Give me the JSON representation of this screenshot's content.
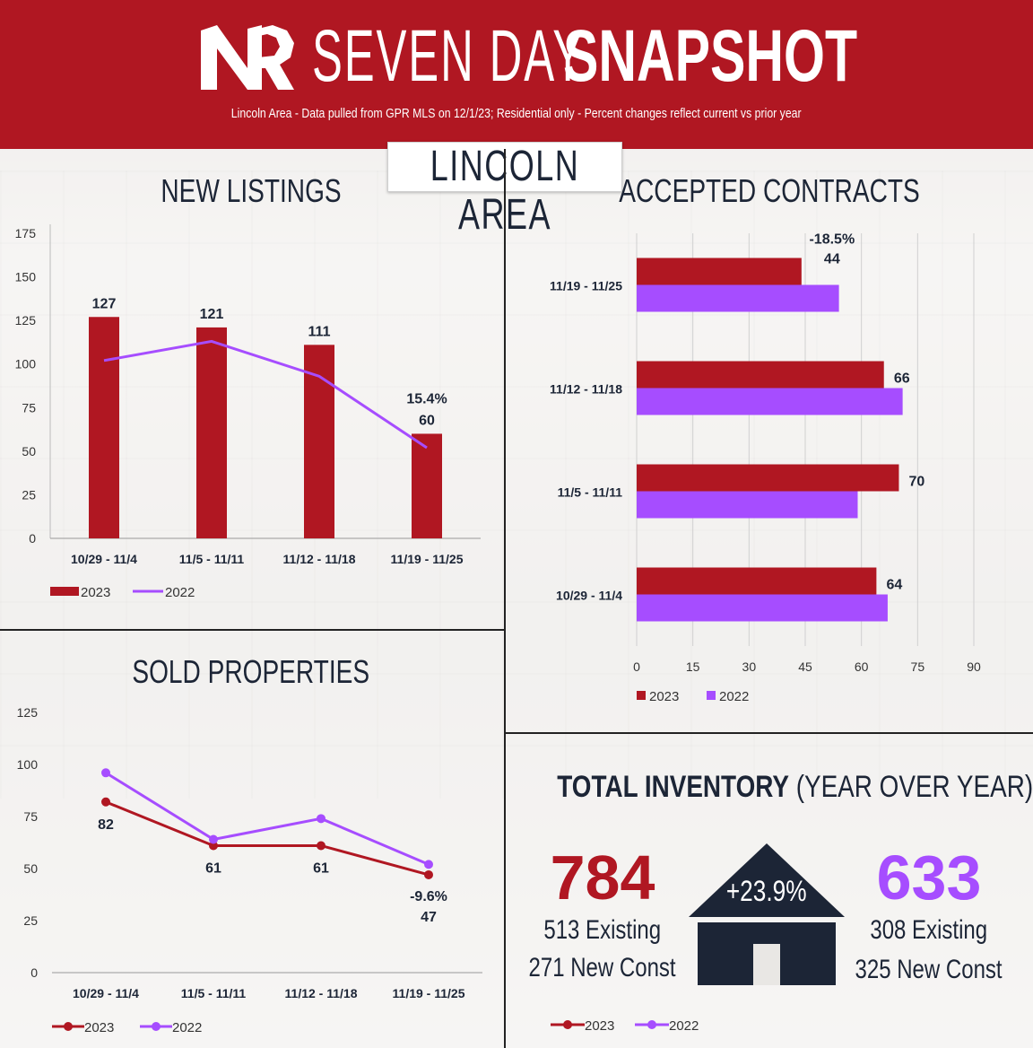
{
  "colors": {
    "red": "#b01722",
    "purple": "#a64dff",
    "navy": "#1c2536"
  },
  "header": {
    "logo_text": "NR",
    "title_thin": "SEVEN DAY",
    "title_bold": "SNAPSHOT",
    "subtitle": "Lincoln Area - Data pulled from GPR MLS on 12/1/23; Residential only - Percent changes reflect current vs prior year",
    "area": "LINCOLN AREA"
  },
  "chart_data": [
    {
      "id": "new_listings",
      "type": "bar",
      "title": "NEW  LISTINGS",
      "categories": [
        "10/29 - 11/4",
        "11/5 - 11/11",
        "11/12 - 11/18",
        "11/19 - 11/25"
      ],
      "series": [
        {
          "name": "2023",
          "type": "bar",
          "values": [
            127,
            121,
            111,
            60
          ]
        },
        {
          "name": "2022",
          "type": "line",
          "values": [
            102,
            113,
            93,
            52
          ]
        }
      ],
      "data_labels": [
        "127",
        "121",
        "111",
        "60"
      ],
      "annotation": "15.4%",
      "yticks": [
        0,
        25,
        50,
        75,
        100,
        125,
        150,
        175
      ],
      "ylim": [
        0,
        175
      ],
      "grid": true,
      "legend": "bottom-left"
    },
    {
      "id": "accepted_contracts",
      "type": "bar",
      "orientation": "horizontal",
      "title": "ACCEPTED CONTRACTS",
      "categories": [
        "11/19 - 11/25",
        "11/12 - 11/18",
        "11/5 - 11/11",
        "10/29 - 11/4"
      ],
      "series": [
        {
          "name": "2023",
          "values": [
            44,
            66,
            70,
            64
          ]
        },
        {
          "name": "2022",
          "values": [
            54,
            71,
            59,
            67
          ]
        }
      ],
      "data_labels": [
        "44",
        "66",
        "70",
        "64"
      ],
      "annotation": "-18.5%",
      "xticks": [
        0,
        15,
        30,
        45,
        60,
        75,
        90
      ],
      "xlim": [
        0,
        90
      ],
      "grid": true,
      "legend": "bottom-left"
    },
    {
      "id": "sold_properties",
      "type": "line",
      "title": "SOLD PROPERTIES",
      "categories": [
        "10/29 - 11/4",
        "11/5 - 11/11",
        "11/12 - 11/18",
        "11/19 - 11/25"
      ],
      "series": [
        {
          "name": "2023",
          "values": [
            82,
            61,
            61,
            47
          ]
        },
        {
          "name": "2022",
          "values": [
            96,
            64,
            74,
            52
          ]
        }
      ],
      "data_labels": [
        "82",
        "61",
        "61",
        "47"
      ],
      "annotation": "-9.6%",
      "yticks": [
        0,
        25,
        50,
        75,
        100,
        125
      ],
      "ylim": [
        0,
        125
      ],
      "grid": false,
      "legend": "bottom-left"
    }
  ],
  "inventory": {
    "title_bold": "TOTAL INVENTORY",
    "title_thin": " (YEAR OVER YEAR)",
    "y2023": {
      "total": "784",
      "existing": "513 Existing",
      "new_const": "271 New Const"
    },
    "y2022": {
      "total": "633",
      "existing": "308 Existing",
      "new_const": "325 New Const"
    },
    "change": "+23.9%",
    "legend": [
      "2023",
      "2022"
    ]
  }
}
